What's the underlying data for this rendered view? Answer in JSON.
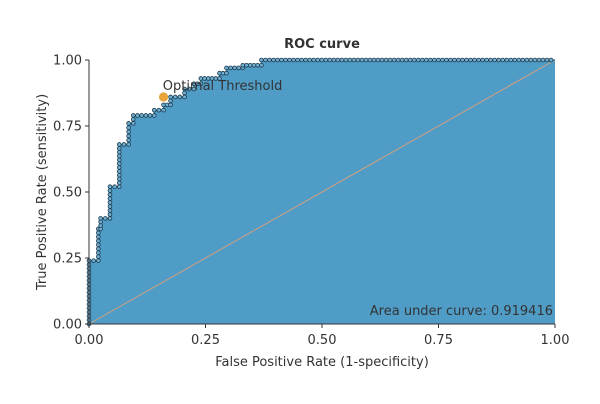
{
  "chart_data": {
    "type": "area",
    "title": "ROC curve",
    "xlabel": "False Positive Rate (1-specificity)",
    "ylabel": "True Positive Rate (sensitivity)",
    "xlim": [
      0,
      1
    ],
    "ylim": [
      0,
      1
    ],
    "x_ticks": [
      "0.00",
      "0.25",
      "0.50",
      "0.75",
      "1.00"
    ],
    "y_ticks": [
      "0.00",
      "0.25",
      "0.50",
      "0.75",
      "1.00"
    ],
    "grid": false,
    "series": [
      {
        "values": [
          {
            "x": 0.0,
            "y": 0.0
          },
          {
            "x": 0.0,
            "y": 0.24
          },
          {
            "x": 0.02,
            "y": 0.24
          },
          {
            "x": 0.02,
            "y": 0.36
          },
          {
            "x": 0.025,
            "y": 0.36
          },
          {
            "x": 0.025,
            "y": 0.4
          },
          {
            "x": 0.045,
            "y": 0.4
          },
          {
            "x": 0.045,
            "y": 0.52
          },
          {
            "x": 0.065,
            "y": 0.52
          },
          {
            "x": 0.065,
            "y": 0.68
          },
          {
            "x": 0.085,
            "y": 0.68
          },
          {
            "x": 0.085,
            "y": 0.76
          },
          {
            "x": 0.095,
            "y": 0.76
          },
          {
            "x": 0.095,
            "y": 0.79
          },
          {
            "x": 0.14,
            "y": 0.79
          },
          {
            "x": 0.14,
            "y": 0.81
          },
          {
            "x": 0.16,
            "y": 0.81
          },
          {
            "x": 0.16,
            "y": 0.83
          },
          {
            "x": 0.175,
            "y": 0.83
          },
          {
            "x": 0.175,
            "y": 0.86
          },
          {
            "x": 0.205,
            "y": 0.86
          },
          {
            "x": 0.205,
            "y": 0.89
          },
          {
            "x": 0.225,
            "y": 0.89
          },
          {
            "x": 0.225,
            "y": 0.91
          },
          {
            "x": 0.24,
            "y": 0.91
          },
          {
            "x": 0.24,
            "y": 0.93
          },
          {
            "x": 0.28,
            "y": 0.93
          },
          {
            "x": 0.28,
            "y": 0.95
          },
          {
            "x": 0.295,
            "y": 0.95
          },
          {
            "x": 0.295,
            "y": 0.97
          },
          {
            "x": 0.33,
            "y": 0.97
          },
          {
            "x": 0.33,
            "y": 0.98
          },
          {
            "x": 0.37,
            "y": 0.98
          },
          {
            "x": 0.37,
            "y": 1.0
          },
          {
            "x": 1.0,
            "y": 1.0
          }
        ]
      }
    ],
    "optimal_point": {
      "label": "Optimal Threshold",
      "x": 0.16,
      "y": 0.86
    },
    "annotation": "Area under curve: 0.919416",
    "colors": {
      "fill": "#4f9cc6",
      "curve": "#2a6f93",
      "marker_fill": "#6fb0d4",
      "marker_stroke": "#1f3a4a",
      "optimal": "#e8a33a",
      "diagonal": "#d0a080",
      "axis": "#333333"
    }
  }
}
